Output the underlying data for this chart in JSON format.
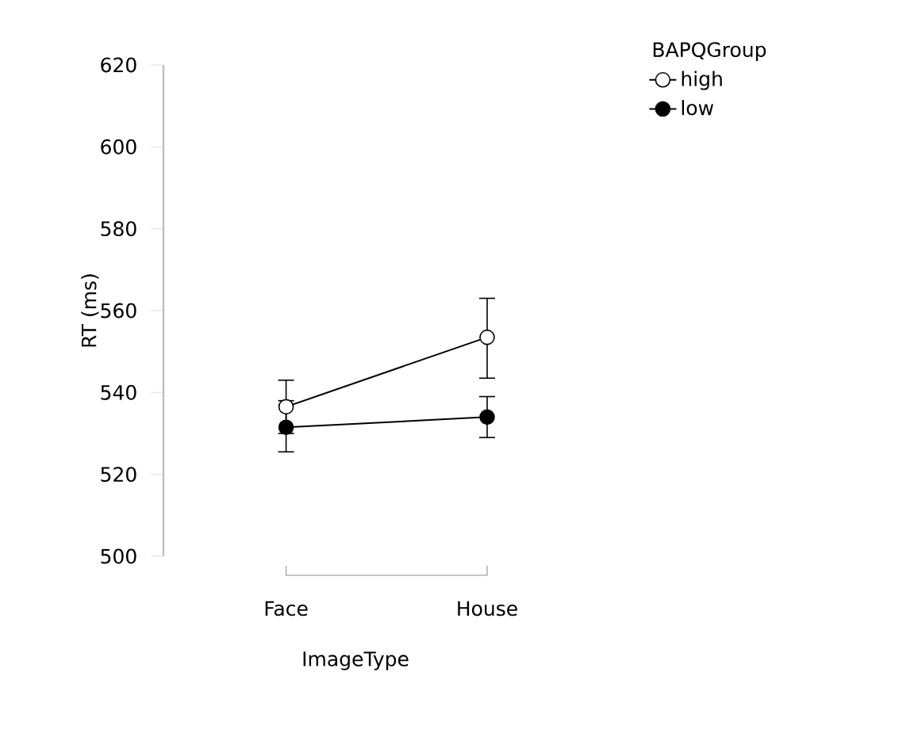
{
  "chart_data": {
    "type": "line",
    "xlabel": "ImageType",
    "ylabel": "RT (ms)",
    "legend_title": "BAPQGroup",
    "categories": [
      "Face",
      "House"
    ],
    "series": [
      {
        "name": "high",
        "color": "#000000",
        "values": [
          536.5,
          553.5
        ],
        "errors": [
          [
            530,
            543
          ],
          [
            543.5,
            563
          ]
        ]
      },
      {
        "name": "low",
        "color": "#000000",
        "values": [
          531.5,
          534
        ],
        "errors": [
          [
            525.5,
            538
          ],
          [
            529,
            539
          ]
        ]
      }
    ],
    "ylim": [
      500,
      620
    ],
    "yticks": [
      500,
      520,
      540,
      560,
      580,
      600,
      620
    ],
    "marker": "circle",
    "line_style": "solid",
    "legend": "top right",
    "grid": false
  }
}
